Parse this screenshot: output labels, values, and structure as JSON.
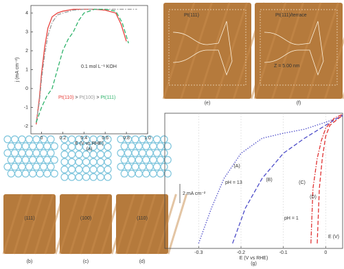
{
  "chart_data": [
    {
      "type": "line",
      "x_label": "E (V vs RHE)",
      "y_label": "j (mA cm⁻²)",
      "panel": "(a)",
      "annotation": "0.1 mol L⁻¹ KOH",
      "separator": " > ",
      "xlim": [
        -0.1,
        1.0
      ],
      "ylim": [
        -2.4,
        4.4
      ],
      "xticks": [
        0,
        0.2,
        0.4,
        0.6,
        0.8,
        {
          "value": 1,
          "label": "1.0"
        }
      ],
      "yticks": [
        -2,
        -1,
        0,
        1,
        2,
        3,
        4
      ],
      "series": [
        {
          "name": "Pt(110)",
          "color": "#e8413c",
          "dash": "solid",
          "x": [
            -0.05,
            -0.02,
            0.0,
            0.03,
            0.06,
            0.1,
            0.15,
            0.2,
            0.3,
            0.4,
            0.5,
            0.6,
            0.7,
            0.75,
            0.8
          ],
          "values": [
            -1.9,
            -0.5,
            0.8,
            2.2,
            3.2,
            3.8,
            4.0,
            4.1,
            4.2,
            4.2,
            4.2,
            4.15,
            4.0,
            3.4,
            2.5
          ]
        },
        {
          "name": "Pt(100)",
          "color": "#9a9a9a",
          "dash": "dashdot",
          "x": [
            -0.05,
            -0.02,
            0.0,
            0.03,
            0.06,
            0.1,
            0.15,
            0.2,
            0.3,
            0.4,
            0.5,
            0.6,
            0.7,
            0.8,
            0.9
          ],
          "values": [
            -1.8,
            -0.7,
            0.5,
            1.8,
            2.8,
            3.5,
            3.9,
            4.0,
            4.15,
            4.2,
            4.2,
            4.2,
            4.2,
            4.2,
            4.2
          ]
        },
        {
          "name": "Pt(111)",
          "color": "#2fb36b",
          "dash": "dashed",
          "x": [
            -0.05,
            0.0,
            0.05,
            0.1,
            0.15,
            0.2,
            0.25,
            0.3,
            0.35,
            0.4,
            0.5,
            0.6,
            0.7,
            0.76,
            0.82
          ],
          "values": [
            -1.8,
            -1.0,
            -0.4,
            0.0,
            1.0,
            2.0,
            2.6,
            3.0,
            3.6,
            4.0,
            4.2,
            4.2,
            4.1,
            3.5,
            2.4
          ]
        }
      ]
    },
    {
      "type": "line",
      "x_label": "E (V vs RHE)",
      "panel": "(g)",
      "scale_bar": "2 mA cm⁻²",
      "axis_note": "E (V)",
      "annotations": [
        "pH = 13",
        "pH = 1"
      ],
      "xlim": [
        -0.38,
        0.04
      ],
      "ylim": [
        -12,
        1.5
      ],
      "xticks": [
        -0.3,
        -0.2,
        -0.1,
        0
      ],
      "series": [
        {
          "name": "(A)",
          "color": "#4a4ac8",
          "dash": "dotted",
          "x": [
            -0.3,
            -0.27,
            -0.24,
            -0.2,
            -0.15,
            -0.1,
            -0.05,
            0.0,
            0.04
          ],
          "values": [
            -11.5,
            -8,
            -5,
            -2.5,
            -1,
            -0.5,
            -0.1,
            0.6,
            1.2
          ]
        },
        {
          "name": "(B)",
          "color": "#4a4ac8",
          "dash": "dashed",
          "x": [
            -0.22,
            -0.19,
            -0.15,
            -0.1,
            -0.05,
            0.0,
            0.04
          ],
          "values": [
            -11.5,
            -8,
            -5,
            -2.5,
            -1,
            0.3,
            1.3
          ]
        },
        {
          "name": "(C)",
          "color": "#e03030",
          "dash": "dashdot",
          "x": [
            -0.035,
            -0.03,
            -0.02,
            -0.01,
            0.0,
            0.02,
            0.04
          ],
          "values": [
            -11.5,
            -6,
            -3,
            -1.2,
            0,
            1,
            1.4
          ]
        },
        {
          "name": "(D)",
          "color": "#e03030",
          "dash": "dashed",
          "x": [
            -0.02,
            -0.015,
            -0.008,
            0.0,
            0.01,
            0.04
          ],
          "values": [
            -11.5,
            -6,
            -3,
            -0.8,
            0.3,
            1.3
          ]
        }
      ]
    }
  ],
  "figure": {
    "stm_top": [
      {
        "label": "Pt(111)",
        "panel": "(e)"
      },
      {
        "label": "Pt(111)/terrace",
        "note": "Z = 5.00 nm",
        "panel": "(f)"
      }
    ],
    "stm_bottom": [
      {
        "label": "(111)",
        "panel": "(b)"
      },
      {
        "label": "(100)",
        "panel": "(c)"
      },
      {
        "label": "(110)",
        "panel": "(d)"
      }
    ]
  }
}
